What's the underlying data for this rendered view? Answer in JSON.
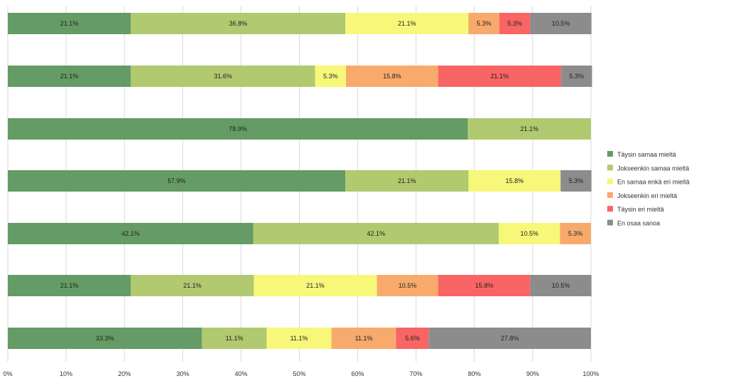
{
  "chart_data": {
    "type": "bar",
    "orientation": "horizontal",
    "stacked": "100%",
    "xlim": [
      0,
      100
    ],
    "x_ticks": [
      "0%",
      "10%",
      "20%",
      "30%",
      "40%",
      "50%",
      "60%",
      "70%",
      "80%",
      "90%",
      "100%"
    ],
    "legend_position": "right",
    "grid": true,
    "series": [
      {
        "name": "Täysin samaa mieltä",
        "color": "#659B64",
        "values": [
          21.1,
          21.1,
          78.9,
          57.9,
          42.1,
          21.1,
          33.3
        ]
      },
      {
        "name": "Jokseenkin samaa mieltä",
        "color": "#B1C96F",
        "values": [
          36.8,
          31.6,
          21.1,
          21.1,
          42.1,
          21.1,
          11.1
        ]
      },
      {
        "name": "En samaa enkä eri mieltä",
        "color": "#F7F77A",
        "values": [
          21.1,
          5.3,
          0,
          15.8,
          10.5,
          21.1,
          11.1
        ]
      },
      {
        "name": "Jokseenkin eri mieltä",
        "color": "#F8AA6C",
        "values": [
          5.3,
          15.8,
          0,
          0,
          5.3,
          10.5,
          11.1
        ]
      },
      {
        "name": "Täysin eri mieltä",
        "color": "#F96464",
        "values": [
          5.3,
          21.1,
          0,
          0,
          0,
          15.8,
          5.6
        ]
      },
      {
        "name": "En osaa sanoa",
        "color": "#8C8C8C",
        "values": [
          10.5,
          5.3,
          0,
          5.3,
          0,
          10.5,
          27.8
        ]
      }
    ]
  }
}
